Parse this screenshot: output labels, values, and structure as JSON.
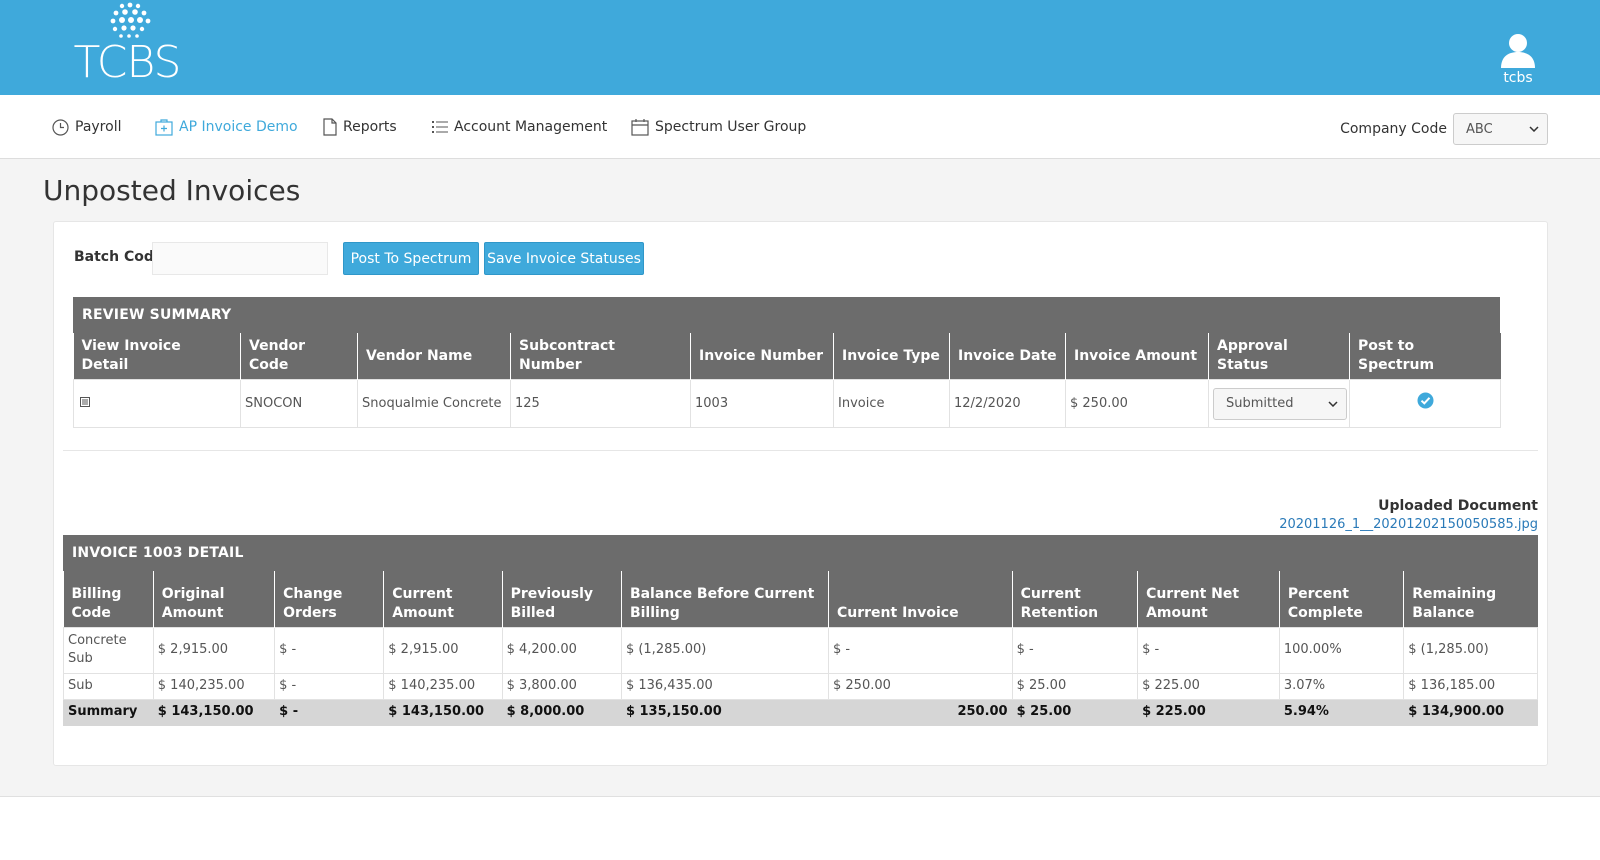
{
  "header": {
    "logo_text": "TCBS",
    "user_name": "tcbs"
  },
  "nav": {
    "items": [
      {
        "label": "Payroll",
        "icon": "clock-icon"
      },
      {
        "label": "AP Invoice Demo",
        "icon": "invoice-plus-icon"
      },
      {
        "label": "Reports",
        "icon": "document-icon"
      },
      {
        "label": "Account Management",
        "icon": "list-icon"
      },
      {
        "label": "Spectrum User Group",
        "icon": "calendar-icon"
      }
    ],
    "company_label": "Company Code",
    "company_value": "ABC"
  },
  "page": {
    "title": "Unposted Invoices"
  },
  "batch": {
    "label": "Batch Code",
    "value": "",
    "post_button": "Post To Spectrum",
    "save_button": "Save Invoice Statuses"
  },
  "review": {
    "title": "REVIEW SUMMARY",
    "headers": [
      "View Invoice Detail",
      "Vendor Code",
      "Vendor Name",
      "Subcontract Number",
      "Invoice Number",
      "Invoice Type",
      "Invoice Date",
      "Invoice Amount",
      "Approval Status",
      "Post to Spectrum"
    ],
    "row": {
      "vendor_code": "SNOCON",
      "vendor_name": "Snoqualmie Concrete",
      "subcontract": "125",
      "invoice_number": "1003",
      "invoice_type": "Invoice",
      "invoice_date": "12/2/2020",
      "invoice_amount": "$ 250.00",
      "approval_status": "Submitted"
    }
  },
  "upload": {
    "label": "Uploaded Document",
    "file": "20201126_1__20201202150050585.jpg"
  },
  "detail": {
    "title": "INVOICE 1003 DETAIL",
    "headers": [
      "Billing Code",
      "Original Amount",
      "Change Orders",
      "Current Amount",
      "Previously Billed",
      "Balance Before Current Billing",
      "Current Invoice",
      "Current Retention",
      "Current Net Amount",
      "Percent Complete",
      "Remaining Balance"
    ],
    "rows": [
      [
        "Concrete Sub",
        "$ 2,915.00",
        "$ -",
        "$ 2,915.00",
        "$ 4,200.00",
        "$ (1,285.00)",
        "$ -",
        "$ -",
        "$ -",
        "100.00%",
        "$ (1,285.00)"
      ],
      [
        "Sub",
        "$ 140,235.00",
        "$ -",
        "$ 140,235.00",
        "$ 3,800.00",
        "$ 136,435.00",
        "$ 250.00",
        "$ 25.00",
        "$ 225.00",
        "3.07%",
        "$ 136,185.00"
      ]
    ],
    "summary": [
      "Summary",
      "$ 143,150.00",
      "$ -",
      "$ 143,150.00",
      "$ 8,000.00",
      "$ 135,150.00",
      "250.00",
      "$ 25.00",
      "$ 225.00",
      "5.94%",
      "$ 134,900.00"
    ]
  },
  "colors": {
    "brand": "#3fa9db",
    "table_header": "#6c6c6c",
    "link": "#2a7ab8"
  }
}
